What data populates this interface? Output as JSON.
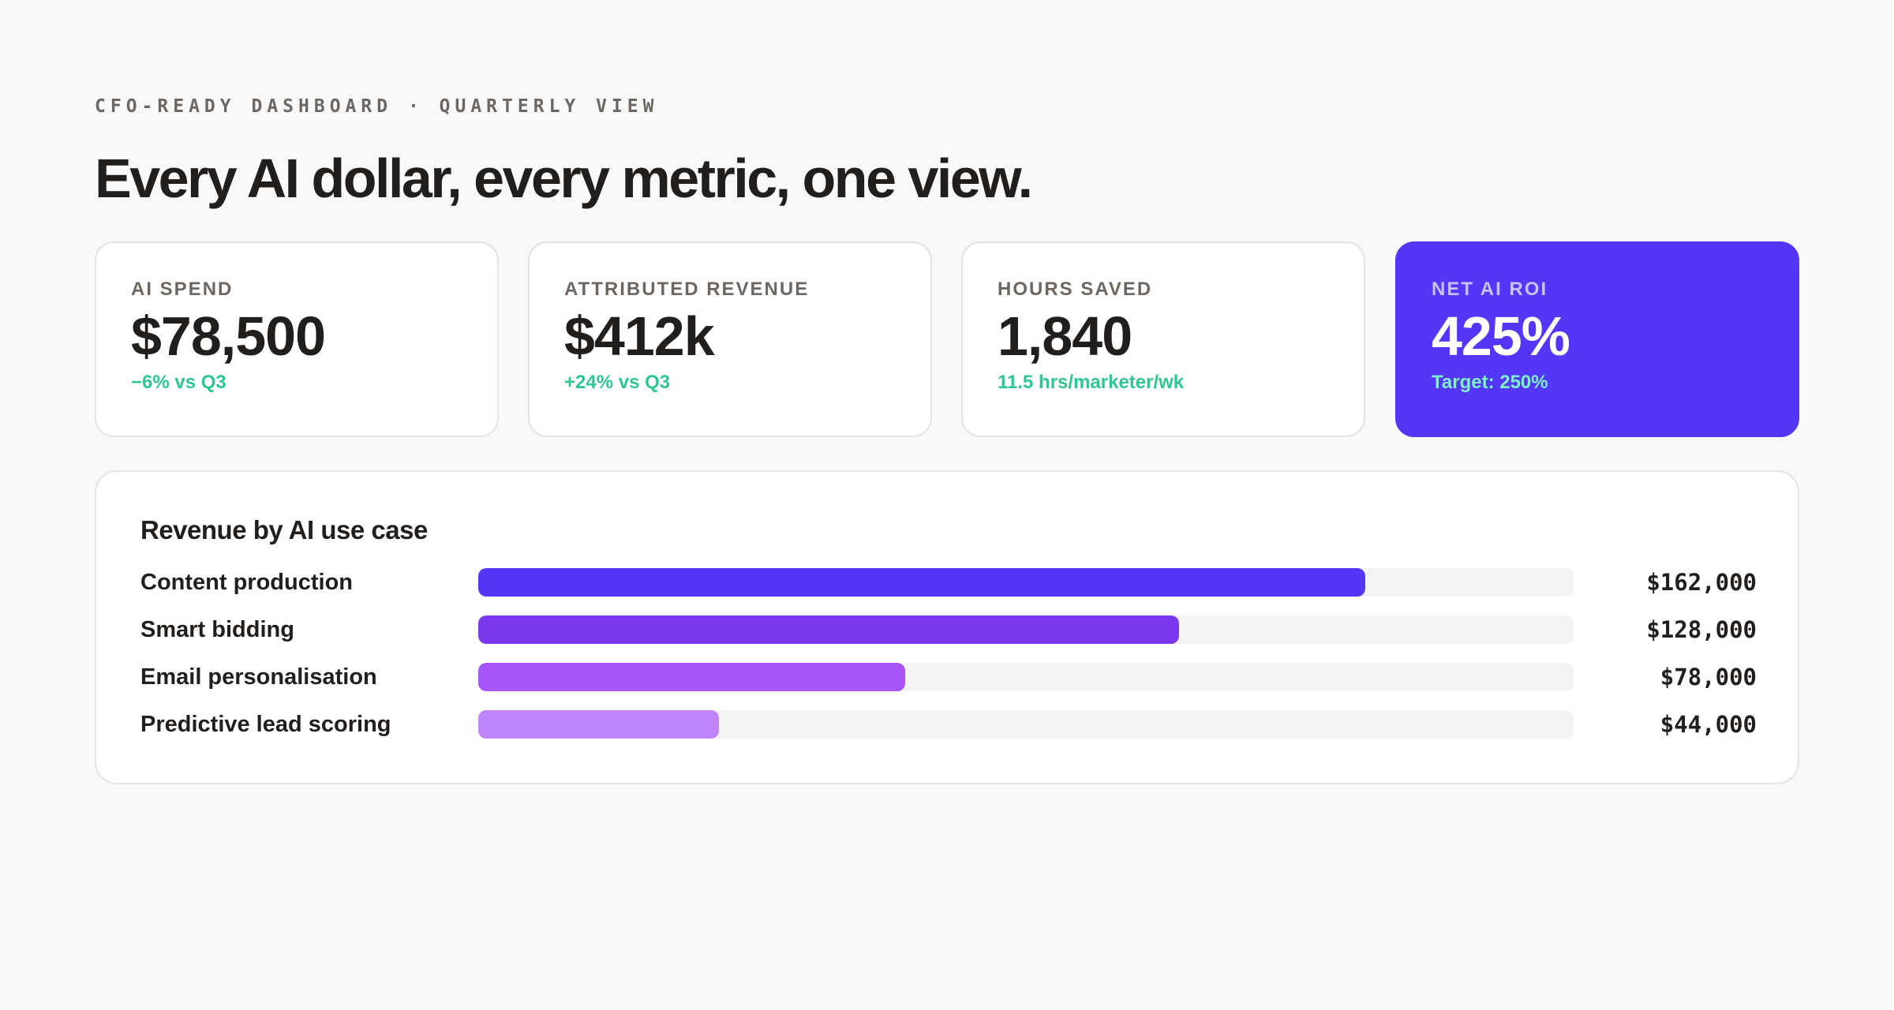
{
  "header": {
    "eyebrow": "CFO-READY DASHBOARD · QUARTERLY VIEW",
    "headline": "Every AI dollar, every metric, one view."
  },
  "kpis": [
    {
      "label": "AI SPEND",
      "value": "$78,500",
      "delta": "−6% vs Q3",
      "highlight": false
    },
    {
      "label": "ATTRIBUTED REVENUE",
      "value": "$412k",
      "delta": "+24% vs Q3",
      "highlight": false
    },
    {
      "label": "HOURS SAVED",
      "value": "1,840",
      "delta": "11.5 hrs/marketer/wk",
      "highlight": false
    },
    {
      "label": "NET AI ROI",
      "value": "425%",
      "delta": "Target: 250%",
      "highlight": true
    }
  ],
  "colors": {
    "accent": "#5336f8",
    "positive": "#2ec790",
    "hero_positive": "#7ff0c8",
    "text": "#221e1c",
    "muted": "#6e6761"
  },
  "chart_data": {
    "type": "bar",
    "title": "Revenue by AI use case",
    "orientation": "horizontal",
    "categories": [
      "Content production",
      "Smart bidding",
      "Email personalisation",
      "Predictive lead scoring"
    ],
    "values": [
      162000,
      128000,
      78000,
      44000
    ],
    "value_labels": [
      "$162,000",
      "$128,000",
      "$78,000",
      "$44,000"
    ],
    "bar_colors": [
      "#5336f8",
      "#7b37ec",
      "#a855f7",
      "#c185fb"
    ],
    "xlim": [
      0,
      200000
    ],
    "grid": false
  }
}
